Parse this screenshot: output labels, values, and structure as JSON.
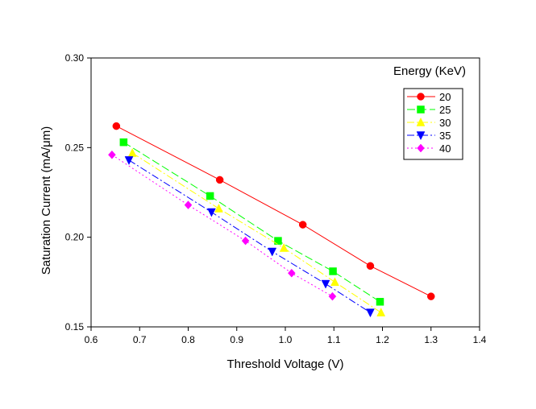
{
  "chart_data": {
    "type": "line",
    "title": "",
    "xlabel": "Threshold Voltage (V)",
    "ylabel": "Saturation Current (mA/μm)",
    "xlim": [
      0.6,
      1.4
    ],
    "ylim": [
      0.15,
      0.3
    ],
    "xticks": [
      "0.6",
      "0.7",
      "0.8",
      "0.9",
      "1.0",
      "1.1",
      "1.2",
      "1.3",
      "1.4"
    ],
    "yticks": [
      "0.15",
      "0.20",
      "0.25",
      "0.30"
    ],
    "grid": false,
    "legend": {
      "title": "Energy (KeV)",
      "placement": "top-right"
    },
    "series": [
      {
        "name": "20",
        "color": "#ff0000",
        "marker": "circle",
        "line": "solid",
        "x": [
          0.652,
          0.865,
          1.036,
          1.175,
          1.3
        ],
        "y": [
          0.262,
          0.232,
          0.207,
          0.184,
          0.167
        ]
      },
      {
        "name": "25",
        "color": "#00ff00",
        "marker": "square",
        "line": "dashed",
        "x": [
          0.667,
          0.845,
          0.985,
          1.098,
          1.195
        ],
        "y": [
          0.253,
          0.223,
          0.198,
          0.181,
          0.164
        ]
      },
      {
        "name": "30",
        "color": "#ffff00",
        "marker": "triangle-up",
        "line": "dashdot",
        "x": [
          0.685,
          0.863,
          0.997,
          1.102,
          1.197
        ],
        "y": [
          0.247,
          0.216,
          0.194,
          0.175,
          0.158
        ]
      },
      {
        "name": "35",
        "color": "#0000ff",
        "marker": "triangle-down",
        "line": "dashdot",
        "x": [
          0.678,
          0.848,
          0.973,
          1.083,
          1.175
        ],
        "y": [
          0.243,
          0.214,
          0.192,
          0.174,
          0.158
        ]
      },
      {
        "name": "40",
        "color": "#ff00ff",
        "marker": "diamond",
        "line": "dotted",
        "x": [
          0.643,
          0.8,
          0.918,
          1.013,
          1.097
        ],
        "y": [
          0.246,
          0.218,
          0.198,
          0.18,
          0.167
        ]
      }
    ]
  }
}
